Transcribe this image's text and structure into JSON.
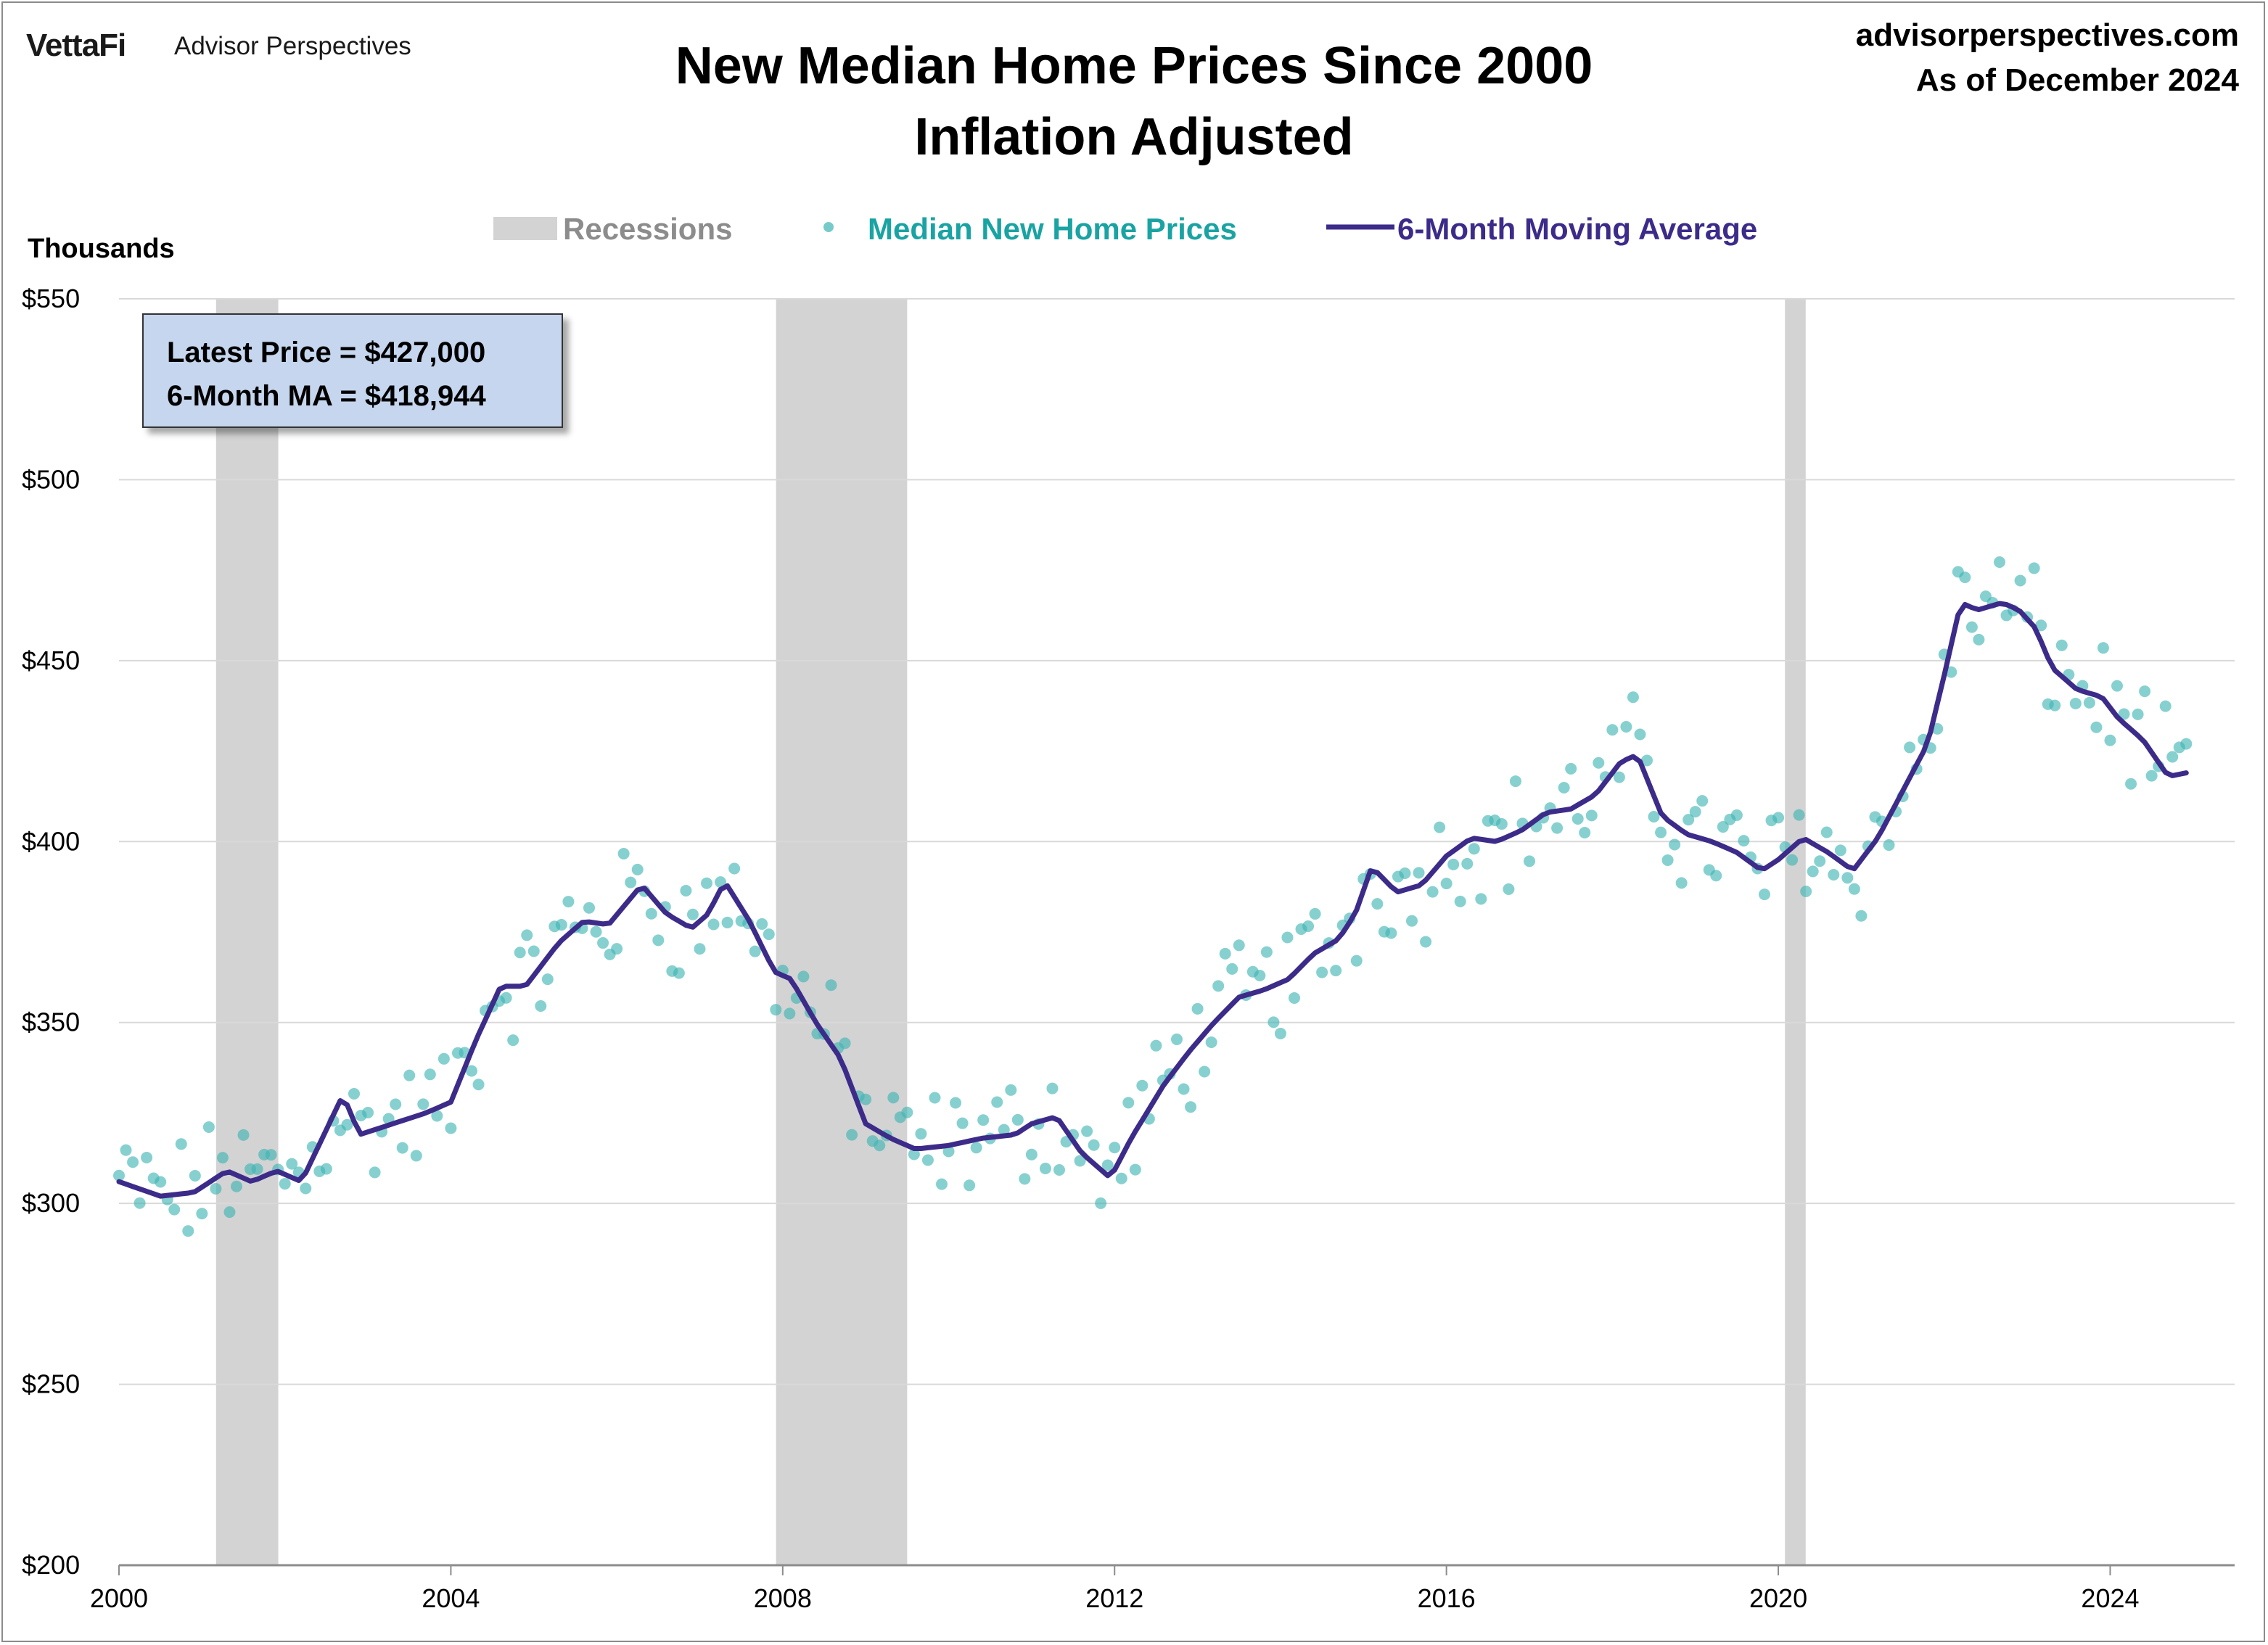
{
  "branding": {
    "logo": "VettaFi",
    "logo_sub": "Advisor Perspectives",
    "site": "advisorperspectives.com",
    "as_of": "As of December 2024"
  },
  "title_line1": "New Median Home Prices Since 2000",
  "title_line2": "Inflation Adjusted",
  "units_label": "Thousands",
  "legend": {
    "recessions": "Recessions",
    "points": "Median New Home Prices",
    "ma": "6-Month Moving Average"
  },
  "callout": {
    "latest": "Latest Price = $427,000",
    "ma": "6-Month MA = $418,944"
  },
  "colors": {
    "points": "#3db3b3",
    "ma": "#3d2b8a",
    "recession": "#d3d3d3",
    "grid": "#d9d9d9",
    "legend_recession_text": "#8c8c8c",
    "legend_points_text": "#1aa3a3",
    "legend_ma_text": "#3d2b8a"
  },
  "chart_data": {
    "type": "scatter",
    "xlim": [
      2000,
      2025.5
    ],
    "ylim": [
      200,
      550
    ],
    "x_ticks": [
      2000,
      2004,
      2008,
      2012,
      2016,
      2020,
      2024
    ],
    "y_ticks": [
      200,
      250,
      300,
      350,
      400,
      450,
      500,
      550
    ],
    "y_tick_labels": [
      "$200",
      "$250",
      "$300",
      "$350",
      "$400",
      "$450",
      "$500",
      "$550"
    ],
    "grid": "horizontal",
    "legend_position": "top-center",
    "recessions": [
      [
        2001.17,
        2001.92
      ],
      [
        2007.92,
        2009.5
      ],
      [
        2020.08,
        2020.33
      ]
    ],
    "ma_anchors": [
      [
        2000.0,
        306
      ],
      [
        2000.5,
        302
      ],
      [
        2000.9,
        303
      ],
      [
        2001.3,
        309
      ],
      [
        2001.6,
        306
      ],
      [
        2001.9,
        309
      ],
      [
        2002.2,
        306
      ],
      [
        2002.7,
        330
      ],
      [
        2002.9,
        319
      ],
      [
        2003.3,
        322
      ],
      [
        2003.7,
        325
      ],
      [
        2004.0,
        328
      ],
      [
        2004.3,
        345
      ],
      [
        2004.6,
        360
      ],
      [
        2004.9,
        360
      ],
      [
        2005.3,
        372
      ],
      [
        2005.6,
        378
      ],
      [
        2005.9,
        377
      ],
      [
        2006.3,
        388
      ],
      [
        2006.6,
        380
      ],
      [
        2006.9,
        376
      ],
      [
        2007.1,
        380
      ],
      [
        2007.3,
        389
      ],
      [
        2007.6,
        378
      ],
      [
        2007.9,
        364
      ],
      [
        2008.1,
        362
      ],
      [
        2008.4,
        350
      ],
      [
        2008.7,
        340
      ],
      [
        2009.0,
        322
      ],
      [
        2009.3,
        318
      ],
      [
        2009.6,
        315
      ],
      [
        2010.0,
        316
      ],
      [
        2010.4,
        318
      ],
      [
        2010.8,
        319
      ],
      [
        2011.0,
        322
      ],
      [
        2011.3,
        324
      ],
      [
        2011.6,
        314
      ],
      [
        2011.95,
        307
      ],
      [
        2012.2,
        318
      ],
      [
        2012.6,
        333
      ],
      [
        2012.9,
        342
      ],
      [
        2013.2,
        350
      ],
      [
        2013.5,
        357
      ],
      [
        2013.8,
        359
      ],
      [
        2014.1,
        362
      ],
      [
        2014.4,
        369
      ],
      [
        2014.7,
        373
      ],
      [
        2014.9,
        380
      ],
      [
        2015.1,
        393
      ],
      [
        2015.4,
        386
      ],
      [
        2015.7,
        388
      ],
      [
        2016.0,
        396
      ],
      [
        2016.3,
        401
      ],
      [
        2016.6,
        400
      ],
      [
        2016.9,
        403
      ],
      [
        2017.2,
        408
      ],
      [
        2017.5,
        409
      ],
      [
        2017.8,
        413
      ],
      [
        2018.1,
        422
      ],
      [
        2018.3,
        424
      ],
      [
        2018.6,
        407
      ],
      [
        2018.9,
        402
      ],
      [
        2019.2,
        400
      ],
      [
        2019.5,
        397
      ],
      [
        2019.8,
        392
      ],
      [
        2020.0,
        395
      ],
      [
        2020.3,
        401
      ],
      [
        2020.6,
        397
      ],
      [
        2020.9,
        392
      ],
      [
        2021.2,
        401
      ],
      [
        2021.5,
        414
      ],
      [
        2021.8,
        427
      ],
      [
        2022.0,
        446
      ],
      [
        2022.2,
        466
      ],
      [
        2022.4,
        464
      ],
      [
        2022.7,
        466
      ],
      [
        2022.9,
        464
      ],
      [
        2023.1,
        459
      ],
      [
        2023.3,
        448
      ],
      [
        2023.6,
        442
      ],
      [
        2023.9,
        440
      ],
      [
        2024.1,
        434
      ],
      [
        2024.4,
        428
      ],
      [
        2024.7,
        418
      ],
      [
        2024.92,
        419
      ]
    ]
  }
}
